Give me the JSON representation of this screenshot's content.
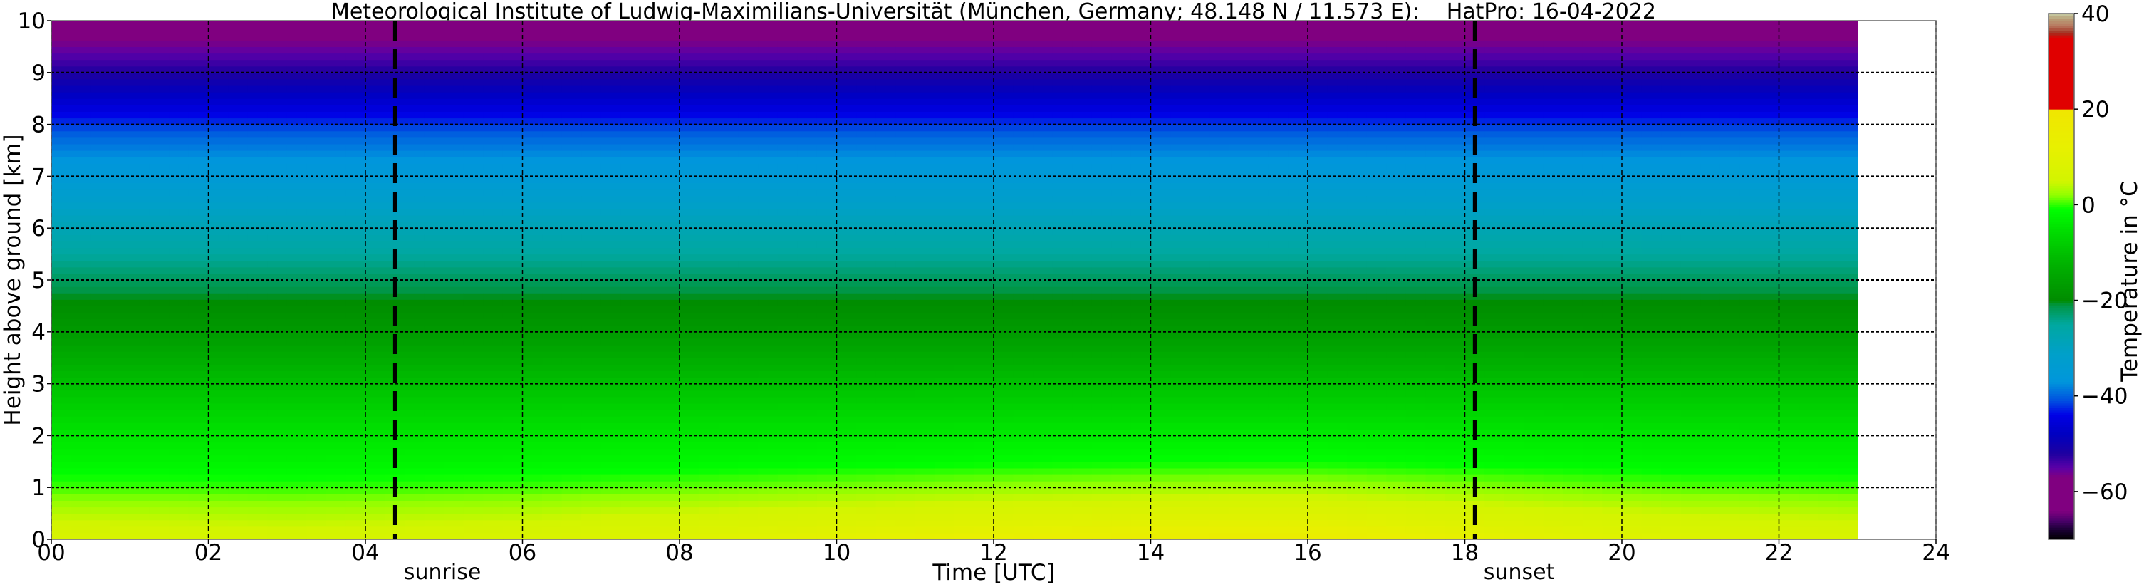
{
  "chart_data": {
    "type": "heatmap",
    "title": "Meteorological Institute of Ludwig-Maximilians-Universität (München, Germany; 48.148 N / 11.573 E):    HatPro: 16-04-2022",
    "xlabel": "Time [UTC]",
    "ylabel": "Height above ground [km]",
    "xlim": [
      0,
      24
    ],
    "ylim": [
      0,
      10
    ],
    "x_ticks": [
      "00",
      "02",
      "04",
      "06",
      "08",
      "10",
      "12",
      "14",
      "16",
      "18",
      "20",
      "22",
      "24"
    ],
    "y_ticks": [
      "0",
      "1",
      "2",
      "3",
      "4",
      "5",
      "6",
      "7",
      "8",
      "9",
      "10"
    ],
    "grid": true,
    "data_end_hour": 23,
    "annotations": [
      {
        "label": "sunrise",
        "hour": 4.38
      },
      {
        "label": "sunset",
        "hour": 18.13
      }
    ],
    "profile_heights_km": [
      0,
      0.5,
      1,
      1.5,
      2,
      3,
      4,
      5,
      6,
      7,
      7.8,
      8.5,
      9,
      9.5,
      10
    ],
    "profile_temperature_c": [
      9,
      5,
      1,
      -2,
      -4,
      -10,
      -17,
      -22,
      -28,
      -35,
      -40,
      -47,
      -52,
      -56,
      -59
    ],
    "surface_anomaly_hours": [
      0,
      3,
      6,
      9,
      12,
      15,
      16,
      18,
      21,
      23
    ],
    "surface_anomaly_c": [
      -2,
      -3,
      -2,
      1,
      4,
      6,
      6,
      3,
      -1,
      -2
    ],
    "colorbar": {
      "label": "Temperature in $^\\circ$C",
      "label_text": "Temperature in °C",
      "range": [
        -70,
        40
      ],
      "ticks": [
        "40",
        "20",
        "0",
        "−20",
        "−40",
        "−60"
      ]
    },
    "colormap": [
      [
        -70,
        "#000000"
      ],
      [
        -68,
        "#1a0033"
      ],
      [
        -66,
        "#4b006b"
      ],
      [
        -64,
        "#800080"
      ],
      [
        -57,
        "#800080"
      ],
      [
        -55,
        "#5a00a8"
      ],
      [
        -52,
        "#1e00a0"
      ],
      [
        -48,
        "#0000c0"
      ],
      [
        -44,
        "#0000e6"
      ],
      [
        -41,
        "#0050e0"
      ],
      [
        -37,
        "#0096dc"
      ],
      [
        -31,
        "#00a0c8"
      ],
      [
        -25,
        "#00a8a0"
      ],
      [
        -21,
        "#009646"
      ],
      [
        -20,
        "#008c00"
      ],
      [
        -12,
        "#00b400"
      ],
      [
        -5,
        "#00e000"
      ],
      [
        -1,
        "#00ff00"
      ],
      [
        2,
        "#90ff00"
      ],
      [
        5,
        "#d2f500"
      ],
      [
        12,
        "#e8f000"
      ],
      [
        19.9,
        "#f0e600"
      ],
      [
        20,
        "#e00000"
      ],
      [
        35,
        "#e00000"
      ],
      [
        36,
        "#a03020"
      ],
      [
        37.5,
        "#b87860"
      ],
      [
        39,
        "#b8a078"
      ],
      [
        40,
        "#c8d0a8"
      ]
    ]
  }
}
